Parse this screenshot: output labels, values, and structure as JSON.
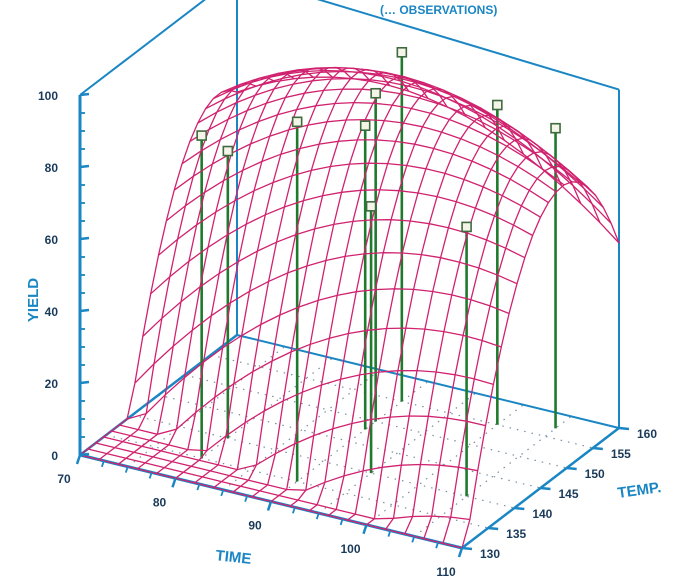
{
  "chart_data": {
    "type": "surface3d",
    "title": "(… OBSERVATIONS)",
    "xlabel": "TIME",
    "ylabel": "TEMP.",
    "zlabel": "YIELD",
    "x_ticks": [
      "70",
      "80",
      "90",
      "100",
      "110"
    ],
    "y_ticks": [
      "130",
      "135",
      "140",
      "145",
      "150",
      "155",
      "160"
    ],
    "z_ticks": [
      "0",
      "20",
      "40",
      "60",
      "80",
      "100"
    ],
    "xlim": [
      70,
      110
    ],
    "ylim": [
      130,
      160
    ],
    "zlim": [
      0,
      100
    ],
    "surface": "fitted response surface (mesh)",
    "observations": [
      {
        "time": 80,
        "temp": 135,
        "yield": 91
      },
      {
        "time": 80,
        "temp": 140,
        "yield": 81
      },
      {
        "time": 90,
        "temp": 135,
        "yield": 103
      },
      {
        "time": 95,
        "temp": 140,
        "yield": 77
      },
      {
        "time": 90,
        "temp": 150,
        "yield": 94
      },
      {
        "time": 90,
        "temp": 148,
        "yield": 87
      },
      {
        "time": 90,
        "temp": 155,
        "yield": 100
      },
      {
        "time": 105,
        "temp": 140,
        "yield": 79
      },
      {
        "time": 100,
        "temp": 155,
        "yield": 93
      },
      {
        "time": 105,
        "temp": 157,
        "yield": 88
      }
    ],
    "grid": true,
    "colors": {
      "axes": "#1a86c4",
      "labels": "#1a86c4",
      "surface": "#d0226f",
      "stems": "#1f7a2e",
      "floor_dots": "#7a8fa0",
      "markers_fill": "#f4f4e8",
      "markers_stroke": "#3d6b3d"
    }
  }
}
